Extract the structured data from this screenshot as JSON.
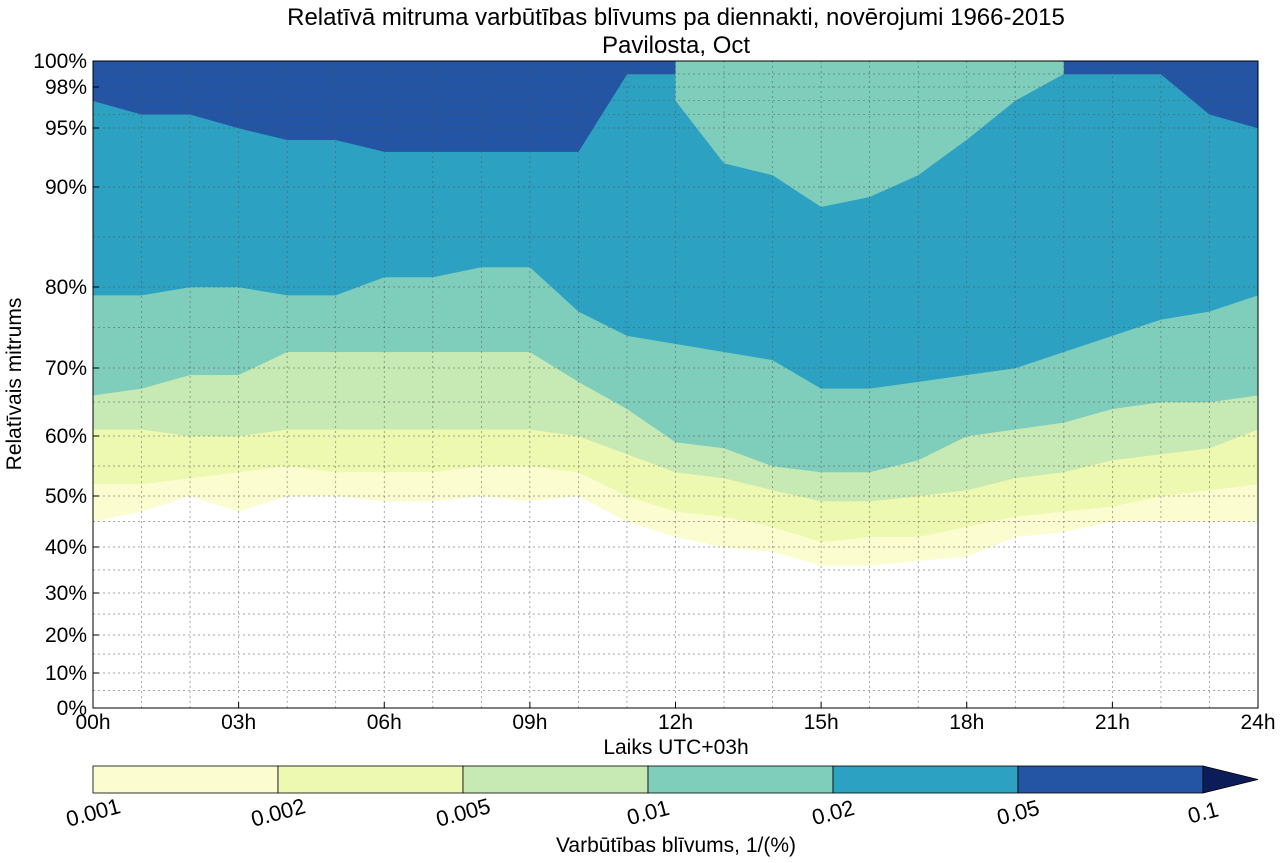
{
  "chart_data": {
    "type": "heatmap",
    "title": "Relatīvā mitruma varbūtības blīvums pa diennakti, novērojumi 1966-2015",
    "subtitle": "Pavilosta, Oct",
    "xlabel": "Laiks UTC+03h",
    "ylabel": "Relatīvais mitrums",
    "x_ticks": [
      "00h",
      "03h",
      "06h",
      "09h",
      "12h",
      "15h",
      "18h",
      "21h",
      "24h"
    ],
    "y_ticks": [
      {
        "value": 0,
        "label": "0%"
      },
      {
        "value": 10,
        "label": "10%"
      },
      {
        "value": 20,
        "label": "20%"
      },
      {
        "value": 30,
        "label": "30%"
      },
      {
        "value": 40,
        "label": "40%"
      },
      {
        "value": 50,
        "label": "50%"
      },
      {
        "value": 60,
        "label": "60%"
      },
      {
        "value": 70,
        "label": "70%"
      },
      {
        "value": 80,
        "label": "80%"
      },
      {
        "value": 90,
        "label": "90%"
      },
      {
        "value": 95,
        "label": "95%"
      },
      {
        "value": 98,
        "label": "98%"
      },
      {
        "value": 100,
        "label": "100%"
      }
    ],
    "xlim": [
      0,
      24
    ],
    "ylim": [
      0,
      100
    ],
    "grid": true,
    "colorbar": {
      "label": "Varbūtības blīvums, 1/(%)",
      "levels": [
        "0.001",
        "0.002",
        "0.005",
        "0.01",
        "0.02",
        "0.05",
        "0.1"
      ],
      "colors": [
        "#fbfdd0",
        "#edf8b1",
        "#c7e9b4",
        "#7fcdbb",
        "#2ca1c2",
        "#2455a4",
        "#0c1c58"
      ],
      "extend": "max"
    },
    "hours": [
      0,
      1,
      2,
      3,
      4,
      5,
      6,
      7,
      8,
      9,
      10,
      11,
      12,
      13,
      14,
      15,
      16,
      17,
      18,
      19,
      20,
      21,
      22,
      23,
      24
    ],
    "contours": [
      {
        "level": "0.001",
        "humidity": [
          45,
          47,
          50,
          47,
          50,
          50,
          49,
          49,
          50,
          49,
          50,
          45,
          42,
          40,
          39,
          36,
          36,
          37,
          38,
          42,
          43,
          45,
          45,
          45,
          45
        ]
      },
      {
        "level": "0.002",
        "humidity": [
          52,
          52,
          53,
          54,
          55,
          54,
          54,
          54,
          55,
          55,
          54,
          50,
          47,
          46,
          44,
          41,
          42,
          42,
          44,
          46,
          47,
          48,
          50,
          51,
          52
        ]
      },
      {
        "level": "0.005",
        "humidity": [
          61,
          61,
          60,
          60,
          61,
          61,
          61,
          61,
          61,
          61,
          60,
          57,
          54,
          53,
          51,
          49,
          49,
          50,
          51,
          53,
          54,
          56,
          57,
          58,
          61
        ]
      },
      {
        "level": "0.01",
        "humidity": [
          66,
          67,
          69,
          69,
          72,
          72,
          72,
          72,
          72,
          72,
          68,
          64,
          59,
          58,
          55,
          54,
          54,
          56,
          60,
          61,
          62,
          64,
          65,
          65,
          66
        ]
      },
      {
        "level": "0.02",
        "humidity": [
          79,
          79,
          80,
          80,
          79,
          79,
          81,
          81,
          82,
          82,
          77,
          74,
          73,
          72,
          71,
          67,
          67,
          68,
          69,
          70,
          72,
          74,
          76,
          77,
          79
        ]
      },
      {
        "level": "0.05",
        "humidity": [
          97,
          96,
          96,
          95,
          94,
          94,
          93,
          93,
          93,
          93,
          93,
          99,
          99,
          99,
          99,
          99,
          99,
          99,
          99,
          99,
          99,
          99,
          99,
          96,
          95
        ]
      }
    ],
    "light_region_top": {
      "description": "lower-density band near 93-100% around 12h-19h",
      "hours": [
        12,
        13,
        14,
        15,
        16,
        17,
        18,
        19,
        20
      ],
      "humidity_low": [
        97,
        92,
        91,
        88,
        89,
        91,
        94,
        97,
        99
      ]
    }
  }
}
